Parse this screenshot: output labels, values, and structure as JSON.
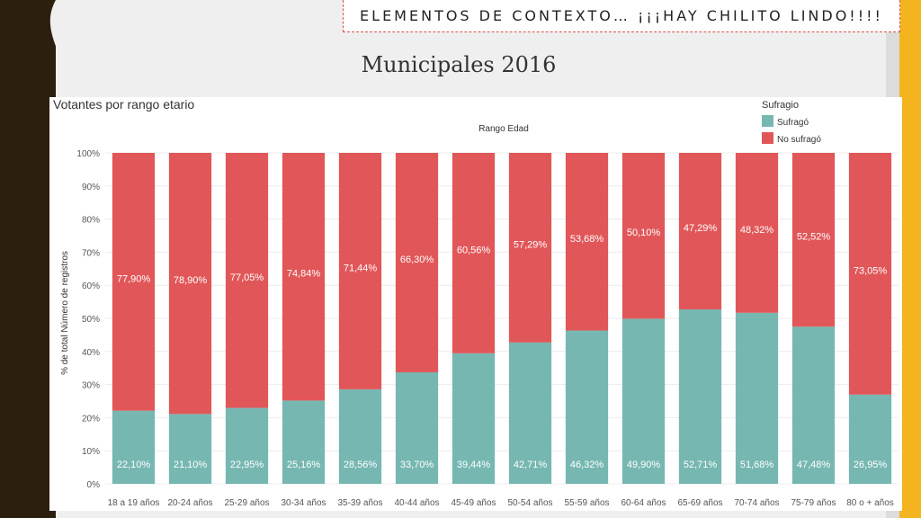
{
  "slide": {
    "header": "ELEMENTOS DE CONTEXTO… ¡¡¡HAY CHILITO LINDO!!!!",
    "subtitle": "Municipales  2016"
  },
  "chart_data": {
    "type": "bar",
    "stacked": true,
    "title": "Votantes por rango etario",
    "column_header": "Rango Edad",
    "ylabel": "% de total Número de registros",
    "ylim": [
      0,
      100
    ],
    "yticks": [
      "0%",
      "10%",
      "20%",
      "30%",
      "40%",
      "50%",
      "60%",
      "70%",
      "80%",
      "90%",
      "100%"
    ],
    "categories": [
      "18 a 19 años",
      "20-24 años",
      "25-29 años",
      "30-34 años",
      "35-39 años",
      "40-44 años",
      "45-49 años",
      "50-54 años",
      "55-59 años",
      "60-64 años",
      "65-69 años",
      "70-74 años",
      "75-79 años",
      "80 o + años"
    ],
    "series": [
      {
        "name": "Sufragó",
        "color": "#76b7b2",
        "values": [
          22.1,
          21.1,
          22.95,
          25.16,
          28.56,
          33.7,
          39.44,
          42.71,
          46.32,
          49.9,
          52.71,
          51.68,
          47.48,
          26.95
        ],
        "labels": [
          "22,10%",
          "21,10%",
          "22,95%",
          "25,16%",
          "28,56%",
          "33,70%",
          "39,44%",
          "42,71%",
          "46,32%",
          "49,90%",
          "52,71%",
          "51,68%",
          "47,48%",
          "26,95%"
        ]
      },
      {
        "name": "No sufragó",
        "color": "#e15759",
        "values": [
          77.9,
          78.9,
          77.05,
          74.84,
          71.44,
          66.3,
          60.56,
          57.29,
          53.68,
          50.1,
          47.29,
          48.32,
          52.52,
          73.05
        ],
        "labels": [
          "77,90%",
          "78,90%",
          "77,05%",
          "74,84%",
          "71,44%",
          "66,30%",
          "60,56%",
          "57,29%",
          "53,68%",
          "50,10%",
          "47,29%",
          "48,32%",
          "52,52%",
          "73,05%"
        ]
      }
    ],
    "legend": {
      "title": "Sufragio",
      "position": "top-right"
    },
    "grid": true
  }
}
